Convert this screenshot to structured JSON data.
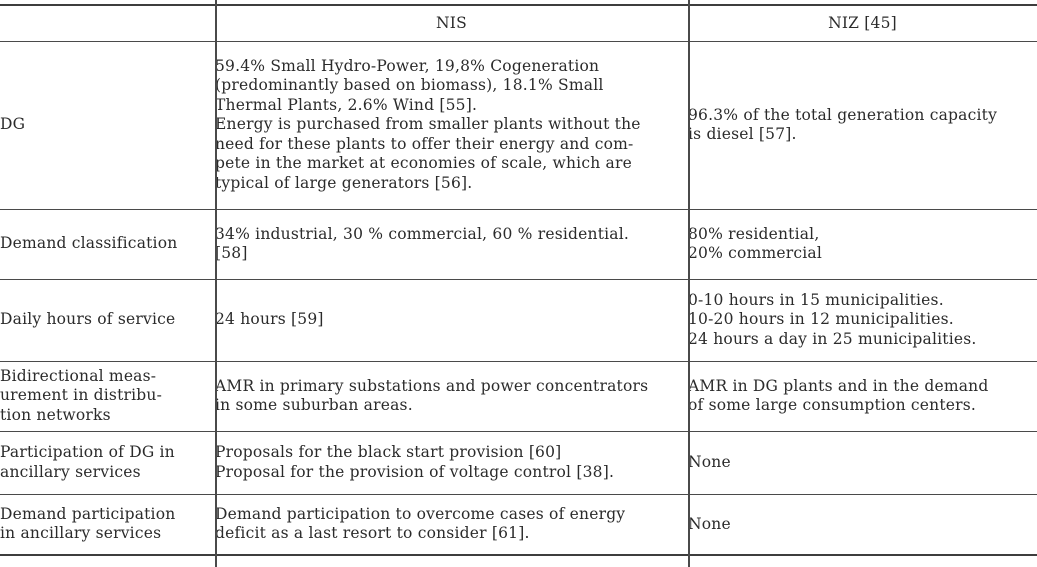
{
  "colors": {
    "background": "#ffffff",
    "text": "#2b2b2b",
    "rule": "#4a4a4a"
  },
  "table": {
    "header": {
      "col1": "",
      "nis": "NIS",
      "niz": "NIZ [45]"
    },
    "rows": [
      {
        "label": "DG",
        "nis": "59.4% Small Hydro-Power, 19,8% Cogeneration\n(predominantly based on biomass), 18.1% Small\nThermal Plants, 2.6% Wind [55].\nEnergy is purchased from smaller plants without the\nneed for these plants to offer their energy and com-\npete in the market at economies of scale, which are\ntypical of large generators [56].",
        "niz": "96.3% of the total generation capacity\nis diesel [57]."
      },
      {
        "label": "Demand classification",
        "nis": "34% industrial, 30 % commercial, 60 % residential.\n[58]",
        "niz": "80% residential,\n20% commercial"
      },
      {
        "label": "Daily hours of service",
        "nis": "24 hours [59]",
        "niz": "0-10 hours in 15 municipalities.\n10-20 hours in 12 municipalities.\n24 hours a day in 25 municipalities."
      },
      {
        "label": "Bidirectional meas-\nurement in distribu-\ntion networks",
        "nis": "AMR in primary substations and power concentrators\nin some suburban areas.",
        "niz": "AMR in DG plants and in the demand\nof some large consumption centers."
      },
      {
        "label": "Participation of DG in\nancillary services",
        "nis": "Proposals for the black start  provision [60]\nProposal for the provision of voltage control [38].",
        "niz": "None"
      },
      {
        "label": "Demand participation\nin ancillary services",
        "nis": "Demand participation to overcome cases of energy\ndeficit as a last resort to consider [61].",
        "niz": "None"
      }
    ]
  }
}
